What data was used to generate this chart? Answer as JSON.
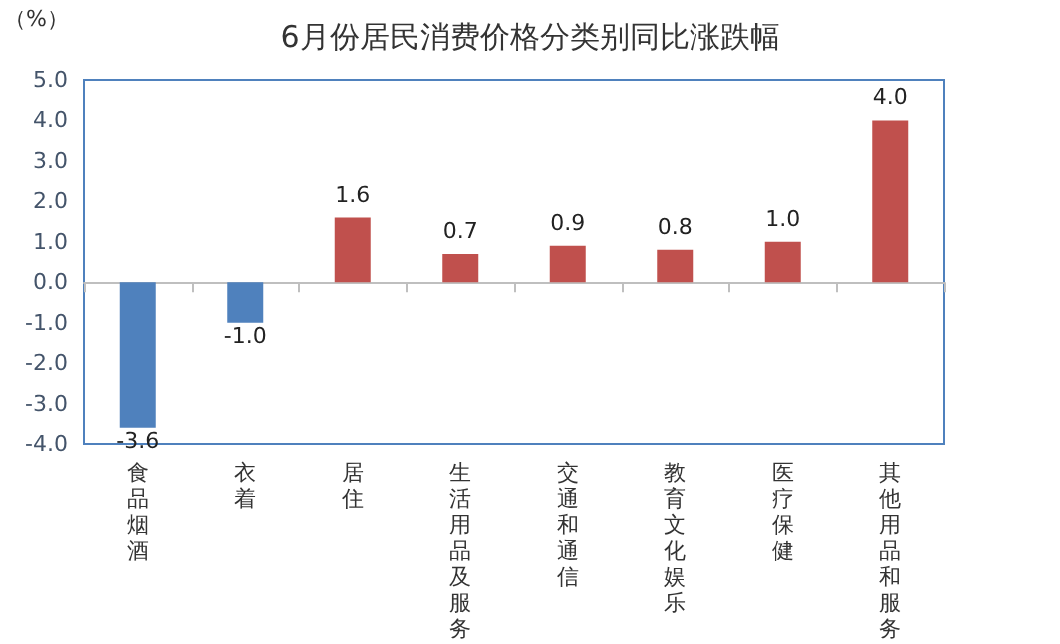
{
  "chart_data": {
    "type": "bar",
    "title": "6月份居民消费价格分类别同比涨跌幅",
    "ylabel": "（%）",
    "categories": [
      "食品烟酒",
      "衣着",
      "居住",
      "生活用品及服务",
      "交通和通信",
      "教育文化娱乐",
      "医疗保健",
      "其他用品和服务"
    ],
    "values": [
      -3.6,
      -1.0,
      1.6,
      0.7,
      0.9,
      0.8,
      1.0,
      4.0
    ],
    "colors": [
      "#4f81bd",
      "#4f81bd",
      "#c0504d",
      "#c0504d",
      "#c0504d",
      "#c0504d",
      "#c0504d",
      "#c0504d"
    ],
    "value_labels": [
      "-3.6",
      "-1.0",
      "1.6",
      "0.7",
      "0.9",
      "0.8",
      "1.0",
      "4.0"
    ],
    "ylim": [
      -4,
      5
    ],
    "yticks": [
      {
        "value": -4,
        "label": "-4.0"
      },
      {
        "value": -3,
        "label": "-3.0"
      },
      {
        "value": -2,
        "label": "-2.0"
      },
      {
        "value": -1,
        "label": "-1.0"
      },
      {
        "value": 0,
        "label": "0.0"
      },
      {
        "value": 1,
        "label": "1.0"
      },
      {
        "value": 2,
        "label": "2.0"
      },
      {
        "value": 3,
        "label": "3.0"
      },
      {
        "value": 4,
        "label": "4.0"
      },
      {
        "value": 5,
        "label": "5.0"
      }
    ],
    "tick_labels": true
  }
}
